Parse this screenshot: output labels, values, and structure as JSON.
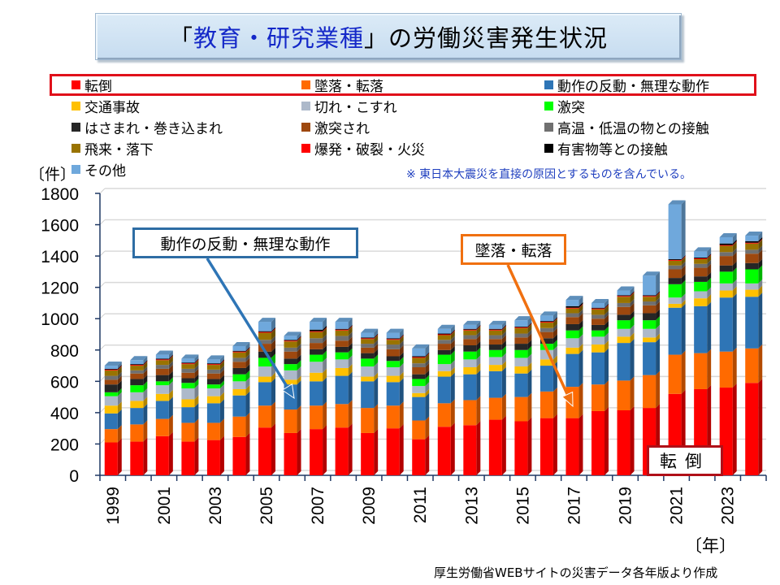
{
  "title": {
    "prefix": "「",
    "highlight": "教育・研究業種",
    "suffix": "」の労働災害発生状況"
  },
  "legend": [
    {
      "label": "転倒",
      "color": "#ff0000"
    },
    {
      "label": "墜落・転落",
      "color": "#ff6a00"
    },
    {
      "label": "動作の反動・無理な動作",
      "color": "#2e75b6"
    },
    {
      "label": "交通事故",
      "color": "#ffc000"
    },
    {
      "label": "切れ・こすれ",
      "color": "#adb9ca"
    },
    {
      "label": "激突",
      "color": "#00ff00"
    },
    {
      "label": "はさまれ・巻き込まれ",
      "color": "#262626"
    },
    {
      "label": "激突され",
      "color": "#9e480e"
    },
    {
      "label": "高温・低温の物との接触",
      "color": "#707070"
    },
    {
      "label": "飛来・落下",
      "color": "#997300"
    },
    {
      "label": "爆発・破裂・火災",
      "color": "#ff0000"
    },
    {
      "label": "有害物等との接触",
      "color": "#000000"
    },
    {
      "label": "その他",
      "color": "#6fa8dc"
    }
  ],
  "note": "※ 東日本大震災を直接の原因とするものを含んでいる。",
  "y_unit": "〔件〕",
  "x_unit": "〔年〕",
  "source": "厚生労働省WEBサイトの災害データ各年版より作成",
  "callouts": {
    "dosa": "動作の反動・無理な動作",
    "tsuiraku": "墜落・転落",
    "tento": "転倒"
  },
  "chart_data": {
    "type": "bar",
    "stacked": true,
    "title": "「教育・研究業種」の労働災害発生状況",
    "xlabel": "〔年〕",
    "ylabel": "〔件〕",
    "ylim": [
      0,
      1800
    ],
    "yticks": [
      0,
      200,
      400,
      600,
      800,
      1000,
      1200,
      1400,
      1600,
      1800
    ],
    "grid": true,
    "legend_position": "top",
    "categories": [
      "1999",
      "2000",
      "2001",
      "2002",
      "2003",
      "2004",
      "2005",
      "2006",
      "2007",
      "2008",
      "2009",
      "2010",
      "2011",
      "2012",
      "2013",
      "2014",
      "2015",
      "2016",
      "2017",
      "2018",
      "2019",
      "2020",
      "2021",
      "2022",
      "2023",
      "2024"
    ],
    "xtick_labels": [
      "1999",
      "",
      "2001",
      "",
      "2003",
      "",
      "2005",
      "",
      "2007",
      "",
      "2009",
      "",
      "2011",
      "",
      "2013",
      "",
      "2015",
      "",
      "2017",
      "",
      "2019",
      "",
      "2021",
      "",
      "2023",
      ""
    ],
    "series": [
      {
        "name": "転倒",
        "values": [
          210,
          215,
          250,
          215,
          225,
          245,
          305,
          270,
          295,
          305,
          270,
          300,
          230,
          310,
          320,
          355,
          345,
          365,
          365,
          410,
          415,
          430,
          520,
          550,
          560,
          590
        ]
      },
      {
        "name": "墜落・転落",
        "values": [
          85,
          110,
          110,
          120,
          110,
          130,
          140,
          150,
          150,
          150,
          160,
          145,
          120,
          150,
          160,
          140,
          155,
          170,
          200,
          170,
          190,
          210,
          250,
          230,
          230,
          220
        ]
      },
      {
        "name": "動作の反動・無理な動作",
        "values": [
          100,
          105,
          115,
          100,
          125,
          135,
          150,
          160,
          155,
          180,
          170,
          150,
          150,
          170,
          165,
          170,
          150,
          165,
          210,
          205,
          240,
          210,
          300,
          300,
          345,
          330
        ]
      },
      {
        "name": "交通事故",
        "values": [
          50,
          45,
          45,
          50,
          45,
          40,
          35,
          30,
          55,
          50,
          30,
          40,
          25,
          35,
          45,
          40,
          45,
          40,
          40,
          50,
          40,
          30,
          25,
          50,
          45,
          45
        ]
      },
      {
        "name": "切れ・こすれ",
        "values": [
          60,
          55,
          55,
          70,
          50,
          50,
          65,
          60,
          70,
          55,
          65,
          55,
          45,
          45,
          50,
          50,
          55,
          60,
          60,
          50,
          50,
          55,
          40,
          45,
          45,
          40
        ]
      },
      {
        "name": "激突",
        "values": [
          25,
          45,
          25,
          35,
          25,
          45,
          55,
          40,
          45,
          45,
          50,
          40,
          45,
          60,
          50,
          45,
          50,
          40,
          50,
          40,
          55,
          55,
          85,
          60,
          75,
          90
        ]
      },
      {
        "name": "はさまれ・巻き込まれ",
        "values": [
          50,
          40,
          40,
          30,
          35,
          40,
          40,
          35,
          35,
          35,
          35,
          30,
          30,
          30,
          40,
          35,
          40,
          35,
          40,
          35,
          35,
          45,
          40,
          35,
          40,
          40
        ]
      },
      {
        "name": "激突され",
        "values": [
          30,
          35,
          40,
          35,
          35,
          40,
          50,
          45,
          40,
          40,
          35,
          45,
          45,
          40,
          40,
          35,
          40,
          40,
          45,
          40,
          50,
          50,
          55,
          55,
          60,
          60
        ]
      },
      {
        "name": "高温・低温の物との接触",
        "values": [
          25,
          20,
          25,
          25,
          25,
          25,
          25,
          25,
          30,
          30,
          25,
          30,
          25,
          25,
          25,
          25,
          25,
          25,
          25,
          25,
          25,
          25,
          25,
          25,
          25,
          25
        ]
      },
      {
        "name": "飛来・落下",
        "values": [
          35,
          30,
          30,
          30,
          30,
          35,
          45,
          40,
          40,
          35,
          30,
          30,
          35,
          30,
          30,
          30,
          35,
          35,
          30,
          35,
          40,
          30,
          30,
          30,
          40,
          40
        ]
      },
      {
        "name": "爆発・破裂・火災",
        "values": [
          5,
          5,
          5,
          5,
          5,
          5,
          5,
          5,
          5,
          5,
          5,
          5,
          5,
          5,
          5,
          5,
          5,
          5,
          5,
          5,
          5,
          5,
          5,
          5,
          5,
          5
        ]
      },
      {
        "name": "有害物等との接触",
        "values": [
          5,
          5,
          5,
          5,
          5,
          5,
          5,
          5,
          10,
          5,
          5,
          5,
          5,
          5,
          5,
          5,
          5,
          5,
          10,
          5,
          5,
          5,
          5,
          5,
          10,
          10
        ]
      },
      {
        "name": "その他",
        "values": [
          20,
          25,
          25,
          25,
          25,
          30,
          60,
          25,
          50,
          45,
          30,
          35,
          50,
          30,
          25,
          25,
          40,
          35,
          40,
          30,
          30,
          125,
          350,
          40,
          40,
          35
        ]
      }
    ]
  }
}
